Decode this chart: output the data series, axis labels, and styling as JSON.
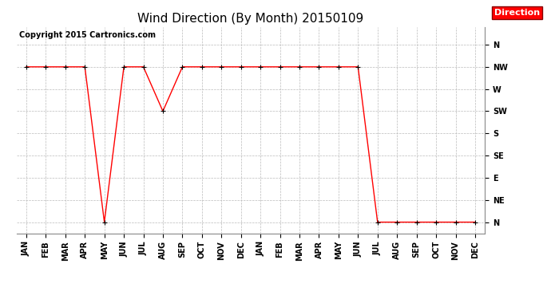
{
  "title": "Wind Direction (By Month) 20150109",
  "copyright_text": "Copyright 2015 Cartronics.com",
  "legend_label": "Direction",
  "legend_bg": "#ff0000",
  "legend_text_color": "#ffffff",
  "line_color": "#ff0000",
  "marker_color": "#000000",
  "background_color": "#ffffff",
  "plot_bg_color": "#ffffff",
  "x_labels": [
    "JAN",
    "FEB",
    "MAR",
    "APR",
    "MAY",
    "JUN",
    "JUL",
    "AUG",
    "SEP",
    "OCT",
    "NOV",
    "DEC",
    "JAN",
    "FEB",
    "MAR",
    "APR",
    "MAY",
    "JUN",
    "JUL",
    "AUG",
    "SEP",
    "OCT",
    "NOV",
    "DEC"
  ],
  "y_labels": [
    "N",
    "NW",
    "W",
    "SW",
    "S",
    "SE",
    "E",
    "NE",
    "N"
  ],
  "y_values": [
    8,
    7,
    6,
    5,
    4,
    3,
    2,
    1,
    0
  ],
  "data_values": [
    7,
    7,
    7,
    7,
    0,
    7,
    7,
    5,
    7,
    7,
    7,
    7,
    7,
    7,
    7,
    7,
    7,
    7,
    0,
    0,
    0,
    0,
    0,
    0
  ],
  "grid_color": "#bbbbbb",
  "title_fontsize": 11,
  "axis_fontsize": 7,
  "copyright_fontsize": 7,
  "legend_fontsize": 8,
  "figsize": [
    6.9,
    3.75
  ],
  "dpi": 100
}
